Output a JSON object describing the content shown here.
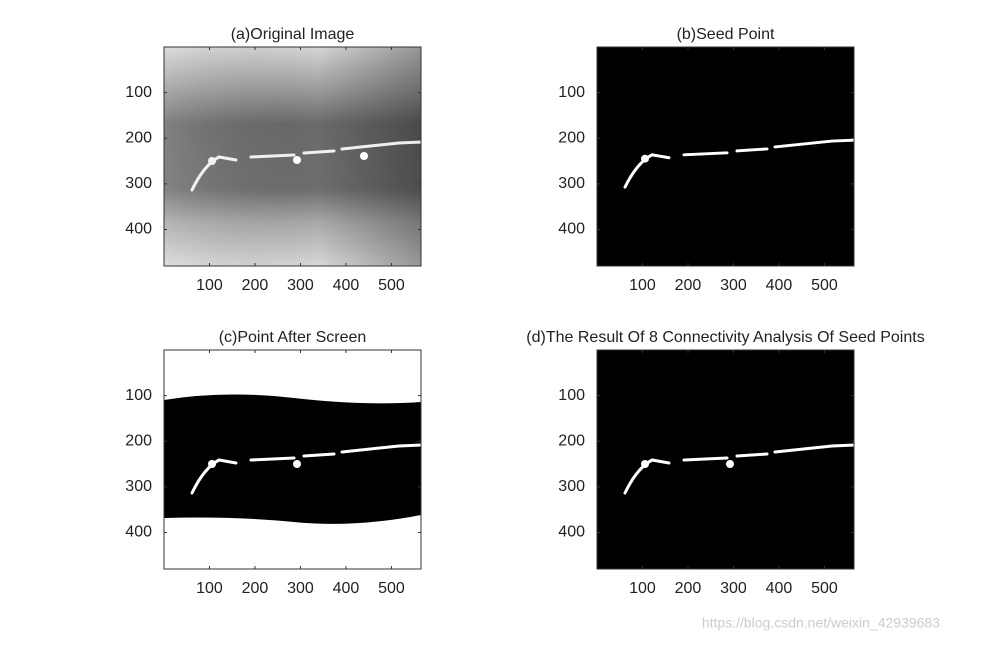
{
  "chart_data": [
    {
      "type": "image",
      "title": "(a)Original Image",
      "xlim": [
        0,
        565
      ],
      "ylim": [
        480,
        0
      ],
      "xticks": [
        100,
        200,
        300,
        400,
        500
      ],
      "yticks": [
        100,
        200,
        300,
        400
      ]
    },
    {
      "type": "image",
      "title": "(b)Seed Point",
      "xlim": [
        0,
        565
      ],
      "ylim": [
        480,
        0
      ],
      "xticks": [
        100,
        200,
        300,
        400,
        500
      ],
      "yticks": [
        100,
        200,
        300,
        400
      ]
    },
    {
      "type": "image",
      "title": "(c)Point After Screen",
      "xlim": [
        0,
        565
      ],
      "ylim": [
        480,
        0
      ],
      "xticks": [
        100,
        200,
        300,
        400,
        500
      ],
      "yticks": [
        100,
        200,
        300,
        400
      ]
    },
    {
      "type": "image",
      "title": "(d)The Result Of 8 Connectivity Analysis Of Seed Points",
      "xlim": [
        0,
        565
      ],
      "ylim": [
        480,
        0
      ],
      "xticks": [
        100,
        200,
        300,
        400,
        500
      ],
      "yticks": [
        100,
        200,
        300,
        400
      ]
    }
  ],
  "watermark": "https://blog.csdn.net/weixin_42939683"
}
